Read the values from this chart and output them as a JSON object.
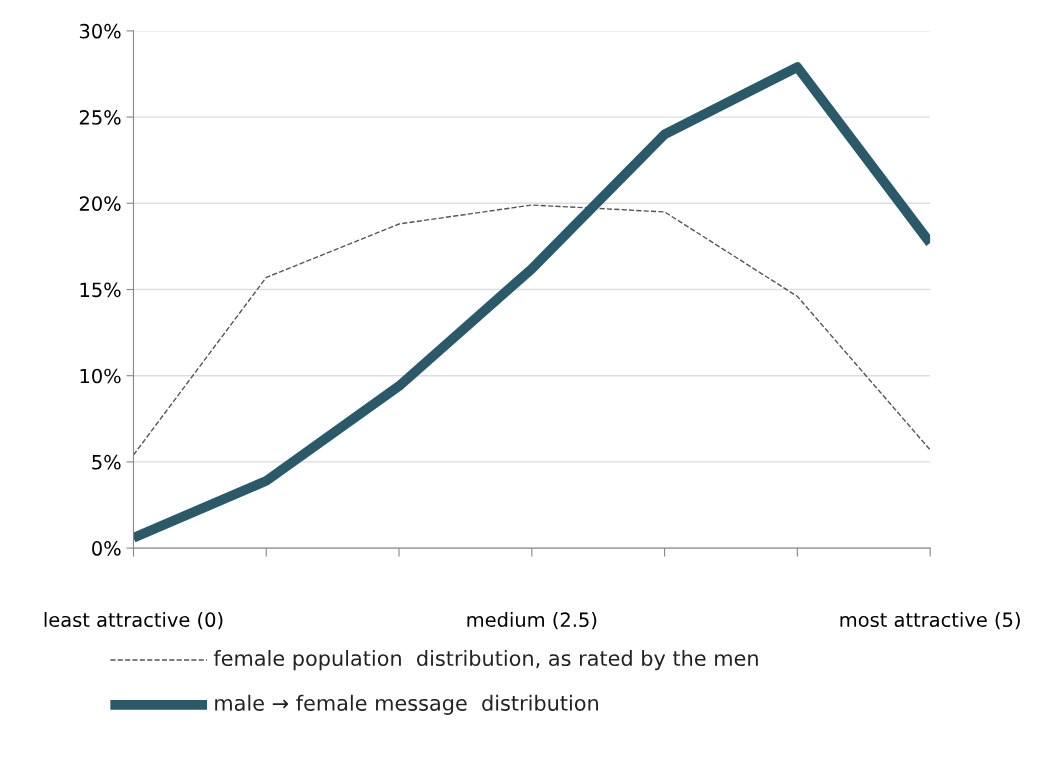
{
  "chart_data": {
    "type": "line",
    "categories": [
      "least attractive (0)",
      null,
      null,
      "medium (2.5)",
      null,
      null,
      "most attractive (5)"
    ],
    "series": [
      {
        "name": "female population  distribution, as rated by the men",
        "color": "#555555",
        "line_style": "dashed",
        "values": [
          5.4,
          15.7,
          18.8,
          19.9,
          19.5,
          14.6,
          5.7
        ]
      },
      {
        "name": "male → female message  distribution",
        "color": "#2a5a6a",
        "line_style": "solid",
        "values": [
          0.6,
          3.9,
          9.4,
          16.2,
          24.0,
          27.9,
          17.7
        ]
      }
    ],
    "ylim": [
      0,
      30
    ],
    "yticks": [
      {
        "value": 0,
        "label": "0%"
      },
      {
        "value": 5,
        "label": "5%"
      },
      {
        "value": 10,
        "label": "10%"
      },
      {
        "value": 15,
        "label": "15%"
      },
      {
        "value": 20,
        "label": "20%"
      },
      {
        "value": 25,
        "label": "25%"
      },
      {
        "value": 30,
        "label": "30%"
      }
    ],
    "grid": "y",
    "legend": "bottom"
  }
}
